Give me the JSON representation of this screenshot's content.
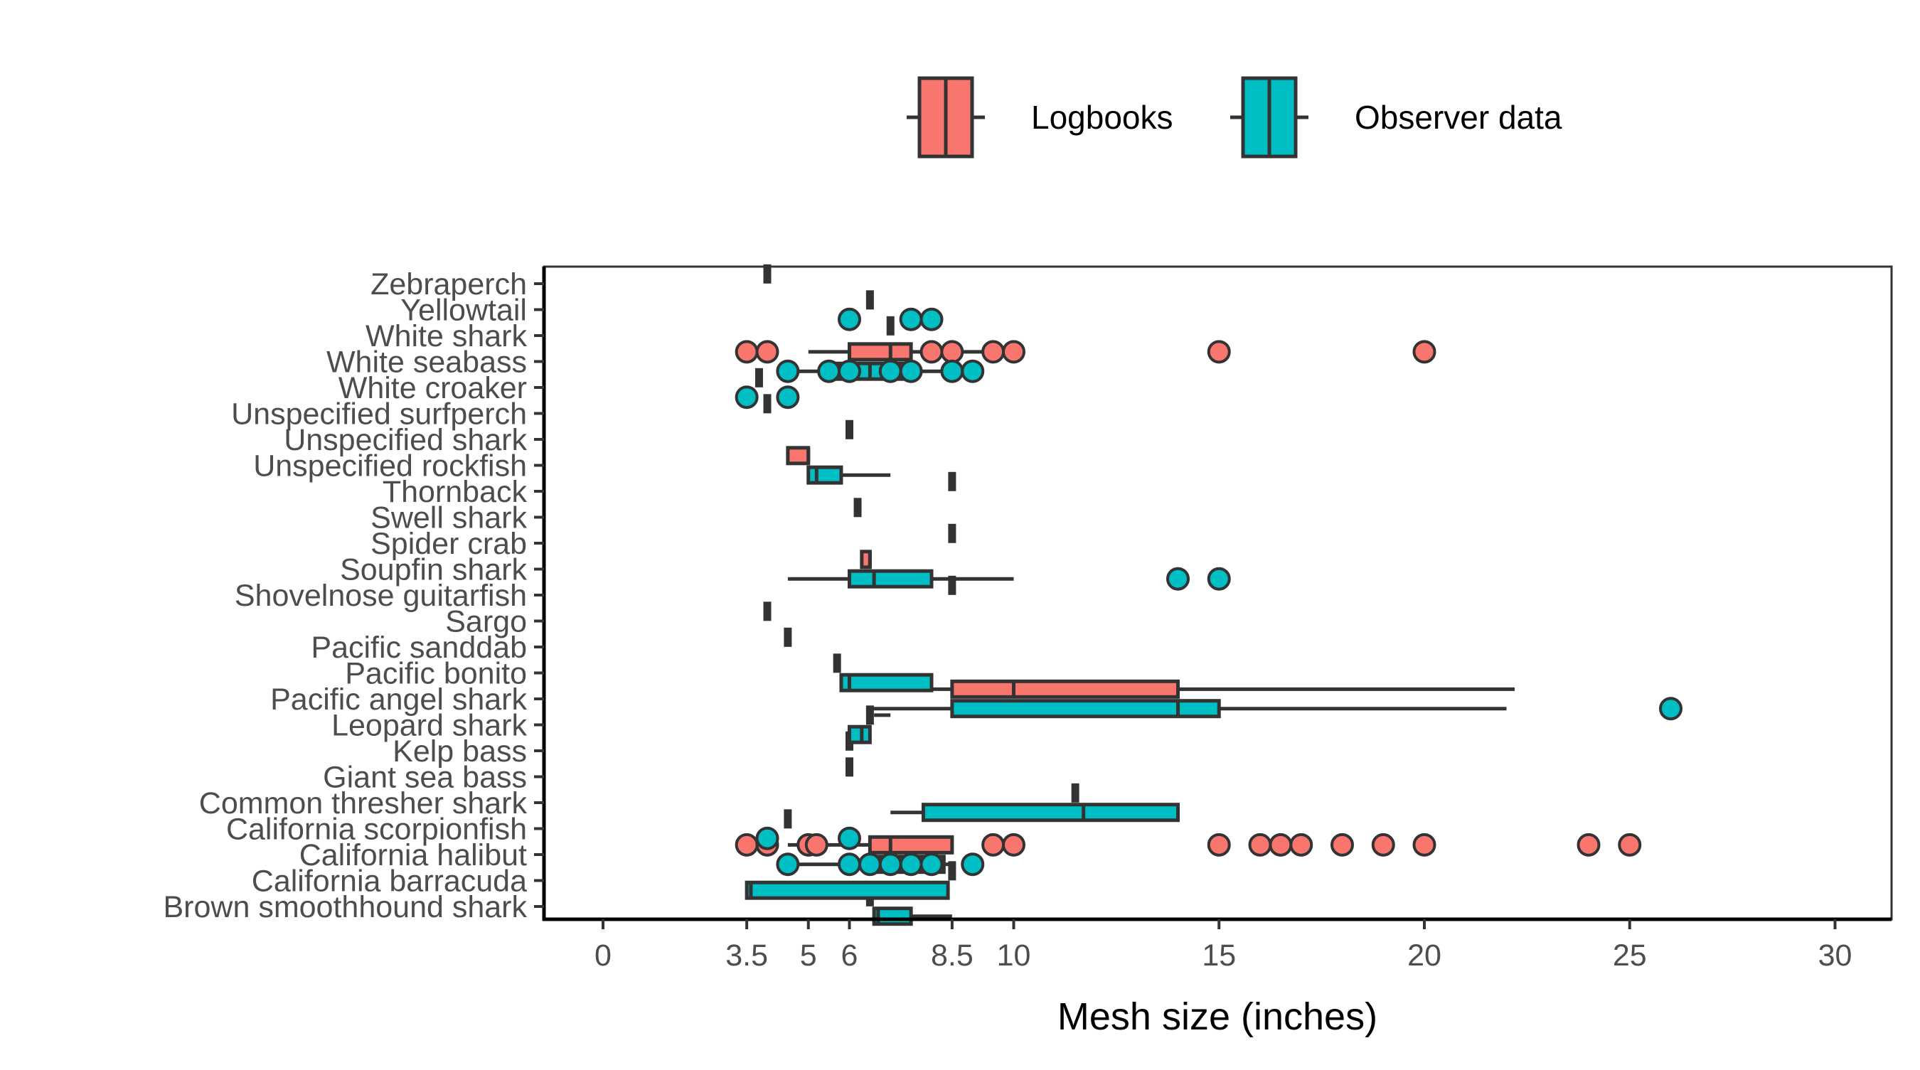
{
  "chart_data": {
    "type": "boxplot",
    "orientation": "horizontal",
    "xlabel": "Mesh size (inches)",
    "ylabel": "",
    "xlim": [
      -1.5,
      31.5
    ],
    "x_ticks": [
      0,
      3.5,
      5,
      6,
      8.5,
      10,
      15,
      20,
      25,
      30
    ],
    "x_tick_labels": [
      "0",
      "3.5",
      "5",
      "6",
      "8.5",
      "10",
      "15",
      "20",
      "25",
      "30"
    ],
    "grid": false,
    "legend": {
      "position": "top",
      "entries": [
        {
          "label": "Logbooks",
          "color": "#F8766D"
        },
        {
          "label": "Observer data",
          "color": "#00BFC4"
        }
      ]
    },
    "categories": [
      "Zebraperch",
      "Yellowtail",
      "White shark",
      "White seabass",
      "White croaker",
      "Unspecified surfperch",
      "Unspecified shark",
      "Unspecified rockfish",
      "Thornback",
      "Swell shark",
      "Spider crab",
      "Soupfin shark",
      "Shovelnose guitarfish",
      "Sargo",
      "Pacific sanddab",
      "Pacific bonito",
      "Pacific angel shark",
      "Leopard shark",
      "Kelp bass",
      "Giant sea bass",
      "Common thresher shark",
      "California scorpionfish",
      "California halibut",
      "California barracuda",
      "Brown smoothhound shark"
    ],
    "series": [
      {
        "name": "Logbooks",
        "color": "#F8766D",
        "boxes": [
          {
            "category": "Zebraperch",
            "q1": 4,
            "median": 4,
            "q3": 4,
            "whisker_low": 4,
            "whisker_high": 4,
            "outliers": []
          },
          {
            "category": "Yellowtail",
            "q1": 6.5,
            "median": 6.5,
            "q3": 6.6,
            "whisker_low": 6.5,
            "whisker_high": 6.6,
            "outliers": []
          },
          {
            "category": "White shark",
            "q1": 7,
            "median": 7,
            "q3": 7,
            "whisker_low": 7,
            "whisker_high": 7,
            "outliers": []
          },
          {
            "category": "White seabass",
            "q1": 6,
            "median": 7,
            "q3": 7.5,
            "whisker_low": 5,
            "whisker_high": 9.5,
            "outliers": [
              3.5,
              4,
              8,
              8.5,
              9.5,
              10,
              15,
              20
            ]
          },
          {
            "category": "White croaker",
            "q1": 3.8,
            "median": 3.8,
            "q3": 3.8,
            "whisker_low": 3.8,
            "whisker_high": 3.8,
            "outliers": []
          },
          {
            "category": "Unspecified surfperch",
            "q1": 4,
            "median": 4,
            "q3": 4,
            "whisker_low": 4,
            "whisker_high": 4,
            "outliers": []
          },
          {
            "category": "Unspecified shark",
            "q1": 6,
            "median": 6,
            "q3": 6,
            "whisker_low": 6,
            "whisker_high": 6,
            "outliers": []
          },
          {
            "category": "Unspecified rockfish",
            "q1": 4.5,
            "median": 5,
            "q3": 5,
            "whisker_low": 4.5,
            "whisker_high": 5,
            "outliers": []
          },
          {
            "category": "Thornback",
            "q1": 8.5,
            "median": 8.5,
            "q3": 8.5,
            "whisker_low": 8.5,
            "whisker_high": 8.5,
            "outliers": []
          },
          {
            "category": "Swell shark",
            "q1": 6.2,
            "median": 6.2,
            "q3": 6.3,
            "whisker_low": 6.2,
            "whisker_high": 6.3,
            "outliers": []
          },
          {
            "category": "Spider crab",
            "q1": 8.5,
            "median": 8.5,
            "q3": 8.5,
            "whisker_low": 8.5,
            "whisker_high": 8.5,
            "outliers": []
          },
          {
            "category": "Soupfin shark",
            "q1": 6.3,
            "median": 6.5,
            "q3": 6.5,
            "whisker_low": 6.3,
            "whisker_high": 6.5,
            "outliers": []
          },
          {
            "category": "Shovelnose guitarfish",
            "q1": 8.5,
            "median": 8.5,
            "q3": 8.5,
            "whisker_low": 8.5,
            "whisker_high": 8.5,
            "outliers": []
          },
          {
            "category": "Sargo",
            "q1": 4,
            "median": 4,
            "q3": 4,
            "whisker_low": 4,
            "whisker_high": 4,
            "outliers": []
          },
          {
            "category": "Pacific sanddab",
            "q1": 4.5,
            "median": 4.5,
            "q3": 4.5,
            "whisker_low": 4.5,
            "whisker_high": 4.5,
            "outliers": []
          },
          {
            "category": "Pacific bonito",
            "q1": 5.7,
            "median": 5.7,
            "q3": 5.8,
            "whisker_low": 5.7,
            "whisker_high": 5.8,
            "outliers": []
          },
          {
            "category": "Pacific angel shark",
            "q1": 8.5,
            "median": 10,
            "q3": 14,
            "whisker_low": 6,
            "whisker_high": 22.2,
            "outliers": []
          },
          {
            "category": "Leopard shark",
            "q1": 6.5,
            "median": 6.5,
            "q3": 6.6,
            "whisker_low": 6.5,
            "whisker_high": 7,
            "outliers": []
          },
          {
            "category": "Kelp bass",
            "q1": 6,
            "median": 6,
            "q3": 6,
            "whisker_low": 6,
            "whisker_high": 6,
            "outliers": []
          },
          {
            "category": "Giant sea bass",
            "q1": 6,
            "median": 6,
            "q3": 6,
            "whisker_low": 6,
            "whisker_high": 6,
            "outliers": []
          },
          {
            "category": "Common thresher shark",
            "q1": 11.5,
            "median": 11.5,
            "q3": 11.5,
            "whisker_low": 11.5,
            "whisker_high": 11.5,
            "outliers": []
          },
          {
            "category": "California scorpionfish",
            "q1": 4.5,
            "median": 4.5,
            "q3": 4.5,
            "whisker_low": 4.5,
            "whisker_high": 4.5,
            "outliers": []
          },
          {
            "category": "California halibut",
            "q1": 6.5,
            "median": 7,
            "q3": 8.5,
            "whisker_low": 4.5,
            "whisker_high": 8.5,
            "outliers": [
              3.5,
              4,
              5,
              5.2,
              9.5,
              10,
              15,
              16,
              16.5,
              17,
              18,
              19,
              20,
              24,
              25
            ]
          },
          {
            "category": "California barracuda",
            "q1": 8.5,
            "median": 8.5,
            "q3": 8.5,
            "whisker_low": 8.5,
            "whisker_high": 8.5,
            "outliers": []
          },
          {
            "category": "Brown smoothhound shark",
            "q1": 6.5,
            "median": 6.5,
            "q3": 6.6,
            "whisker_low": 6.5,
            "whisker_high": 6.6,
            "outliers": []
          }
        ]
      },
      {
        "name": "Observer data",
        "color": "#00BFC4",
        "boxes": [
          {
            "category": "Yellowtail",
            "outliers": [
              6,
              7.5,
              8
            ]
          },
          {
            "category": "White seabass",
            "q1": 5.5,
            "median": 6.5,
            "q3": 7.5,
            "whisker_low": 4.5,
            "whisker_high": 9,
            "outliers": [
              4.5,
              5.5,
              6,
              7,
              7.5,
              8.5,
              9
            ]
          },
          {
            "category": "White croaker",
            "q1": 3.5,
            "median": 3.5,
            "q3": 3.5,
            "whisker_low": 3.5,
            "whisker_high": 3.5,
            "outliers": [
              3.5,
              4.5
            ]
          },
          {
            "category": "Unspecified rockfish",
            "q1": 5,
            "median": 5.2,
            "q3": 5.8,
            "whisker_low": 5,
            "whisker_high": 7,
            "outliers": []
          },
          {
            "category": "Soupfin shark",
            "q1": 6,
            "median": 6.6,
            "q3": 8,
            "whisker_low": 4.5,
            "whisker_high": 10,
            "outliers": [
              14,
              15
            ]
          },
          {
            "category": "Pacific bonito",
            "q1": 5.8,
            "median": 6,
            "q3": 8,
            "whisker_low": 5.8,
            "whisker_high": 8,
            "outliers": []
          },
          {
            "category": "Pacific angel shark",
            "q1": 8.5,
            "median": 14,
            "q3": 15,
            "whisker_low": 6.5,
            "whisker_high": 22,
            "outliers": [
              26
            ]
          },
          {
            "category": "Leopard shark",
            "q1": 6,
            "median": 6.3,
            "q3": 6.5,
            "whisker_low": 6,
            "whisker_high": 6.5,
            "outliers": []
          },
          {
            "category": "Common thresher shark",
            "q1": 7.8,
            "median": 11.7,
            "q3": 14,
            "whisker_low": 7,
            "whisker_high": 14,
            "outliers": []
          },
          {
            "category": "California scorpionfish",
            "outliers": [
              4,
              6
            ]
          },
          {
            "category": "California halibut",
            "q1": 6.5,
            "median": 7,
            "q3": 8.3,
            "whisker_low": 4.5,
            "whisker_high": 8.5,
            "outliers": [
              4.5,
              6,
              6.5,
              7,
              7.5,
              8,
              9
            ]
          },
          {
            "category": "California barracuda",
            "q1": 3.5,
            "median": 3.6,
            "q3": 8.4,
            "whisker_low": 3.5,
            "whisker_high": 8.4,
            "outliers": []
          },
          {
            "category": "Brown smoothhound shark",
            "q1": 6.6,
            "median": 6.7,
            "q3": 7.5,
            "whisker_low": 6.6,
            "whisker_high": 8.5,
            "outliers": []
          }
        ]
      }
    ]
  }
}
